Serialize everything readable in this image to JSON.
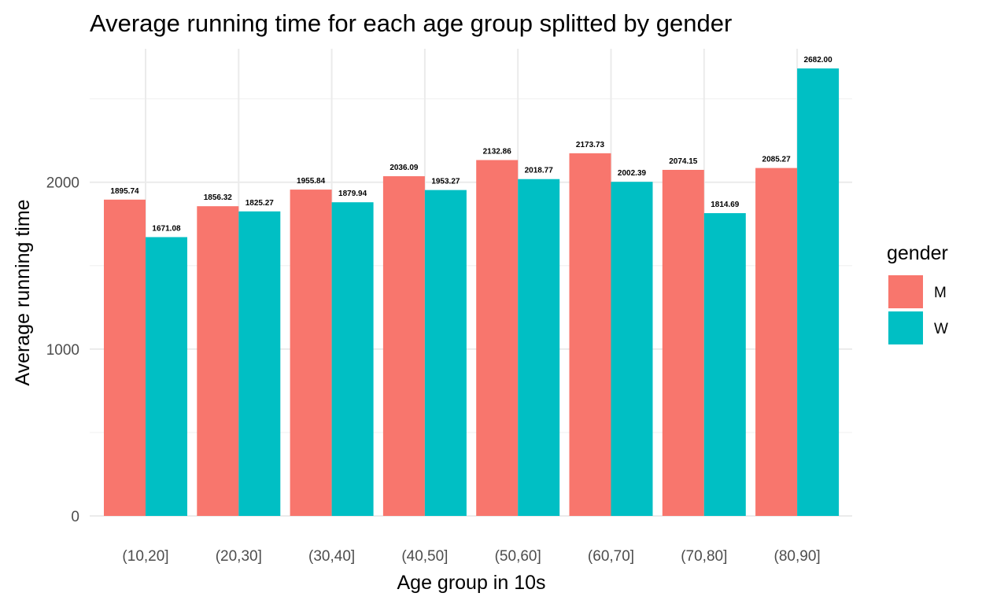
{
  "chart_data": {
    "type": "bar",
    "title": "Average running time for each age group splitted by gender",
    "xlabel": "Age group in 10s",
    "ylabel": "Average running time",
    "categories": [
      "(10,20]",
      "(20,30]",
      "(30,40]",
      "(40,50]",
      "(50,60]",
      "(60,70]",
      "(70,80]",
      "(80,90]"
    ],
    "series": [
      {
        "name": "M",
        "color": "#F8766D",
        "values": [
          1895.74,
          1856.32,
          1955.84,
          2036.09,
          2132.86,
          2173.73,
          2074.15,
          2085.27
        ],
        "labels": [
          "1895.74",
          "1856.32",
          "1955.84",
          "2036.09",
          "2132.86",
          "2173.73",
          "2074.15",
          "2085.27"
        ]
      },
      {
        "name": "W",
        "color": "#00BFC4",
        "values": [
          1671.08,
          1825.27,
          1879.94,
          1953.27,
          2018.77,
          2002.39,
          1814.69,
          2682.0
        ],
        "labels": [
          "1671.08",
          "1825.27",
          "1879.94",
          "1953.27",
          "2018.77",
          "2002.39",
          "1814.69",
          "2682.00"
        ]
      }
    ],
    "ylim": [
      0,
      2800
    ],
    "yticks": [
      0,
      1000,
      2000
    ],
    "ytick_labels": [
      "0",
      "1000",
      "2000"
    ],
    "grid": true,
    "legend": {
      "title": "gender",
      "placement": "right"
    }
  }
}
